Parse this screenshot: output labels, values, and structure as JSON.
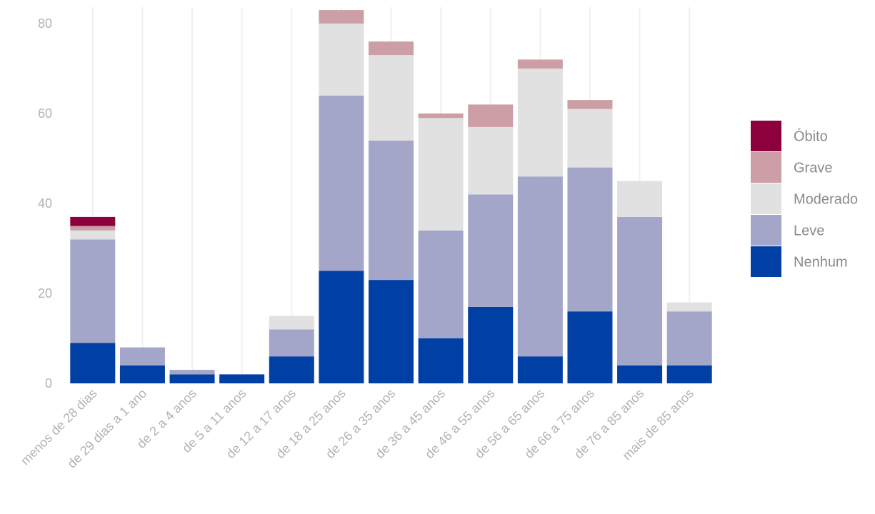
{
  "chart_data": {
    "type": "bar",
    "stacked": true,
    "title": "",
    "xlabel": "",
    "ylabel": "",
    "ylim": [
      0,
      84
    ],
    "y_ticks": [
      0,
      20,
      40,
      60,
      80
    ],
    "grid": "vertical",
    "legend_position": "right",
    "categories": [
      "menos de 28 dias",
      "de 29 dias a 1 ano",
      "de 2 a 4 anos",
      "de 5 a 11 anos",
      "de 12 a 17 anos",
      "de 18 a 25 anos",
      "de 26 a 35 anos",
      "de 36 a 45 anos",
      "de 46 a 55 anos",
      "de 56 a 65 anos",
      "de 66 a 75 anos",
      "de 76 a 85 anos",
      "mais de 85 anos"
    ],
    "series": [
      {
        "name": "Nenhum",
        "color": "#003fa3",
        "values": [
          9,
          4,
          2,
          2,
          6,
          25,
          23,
          10,
          17,
          6,
          16,
          4,
          4
        ]
      },
      {
        "name": "Leve",
        "color": "#a3a6c8",
        "values": [
          23,
          4,
          1,
          0,
          6,
          39,
          31,
          24,
          25,
          40,
          32,
          33,
          12
        ]
      },
      {
        "name": "Moderado",
        "color": "#e1e1e1",
        "values": [
          2,
          0,
          0,
          0,
          3,
          16,
          19,
          25,
          15,
          24,
          13,
          8,
          2
        ]
      },
      {
        "name": "Grave",
        "color": "#cc9ea6",
        "values": [
          1,
          0,
          0,
          0,
          0,
          3,
          3,
          1,
          5,
          2,
          2,
          0,
          0
        ]
      },
      {
        "name": "Óbito",
        "color": "#8c003c",
        "values": [
          2,
          0,
          0,
          0,
          0,
          0,
          0,
          0,
          0,
          0,
          0,
          0,
          0
        ]
      }
    ],
    "legend_order": [
      "Óbito",
      "Grave",
      "Moderado",
      "Leve",
      "Nenhum"
    ]
  }
}
